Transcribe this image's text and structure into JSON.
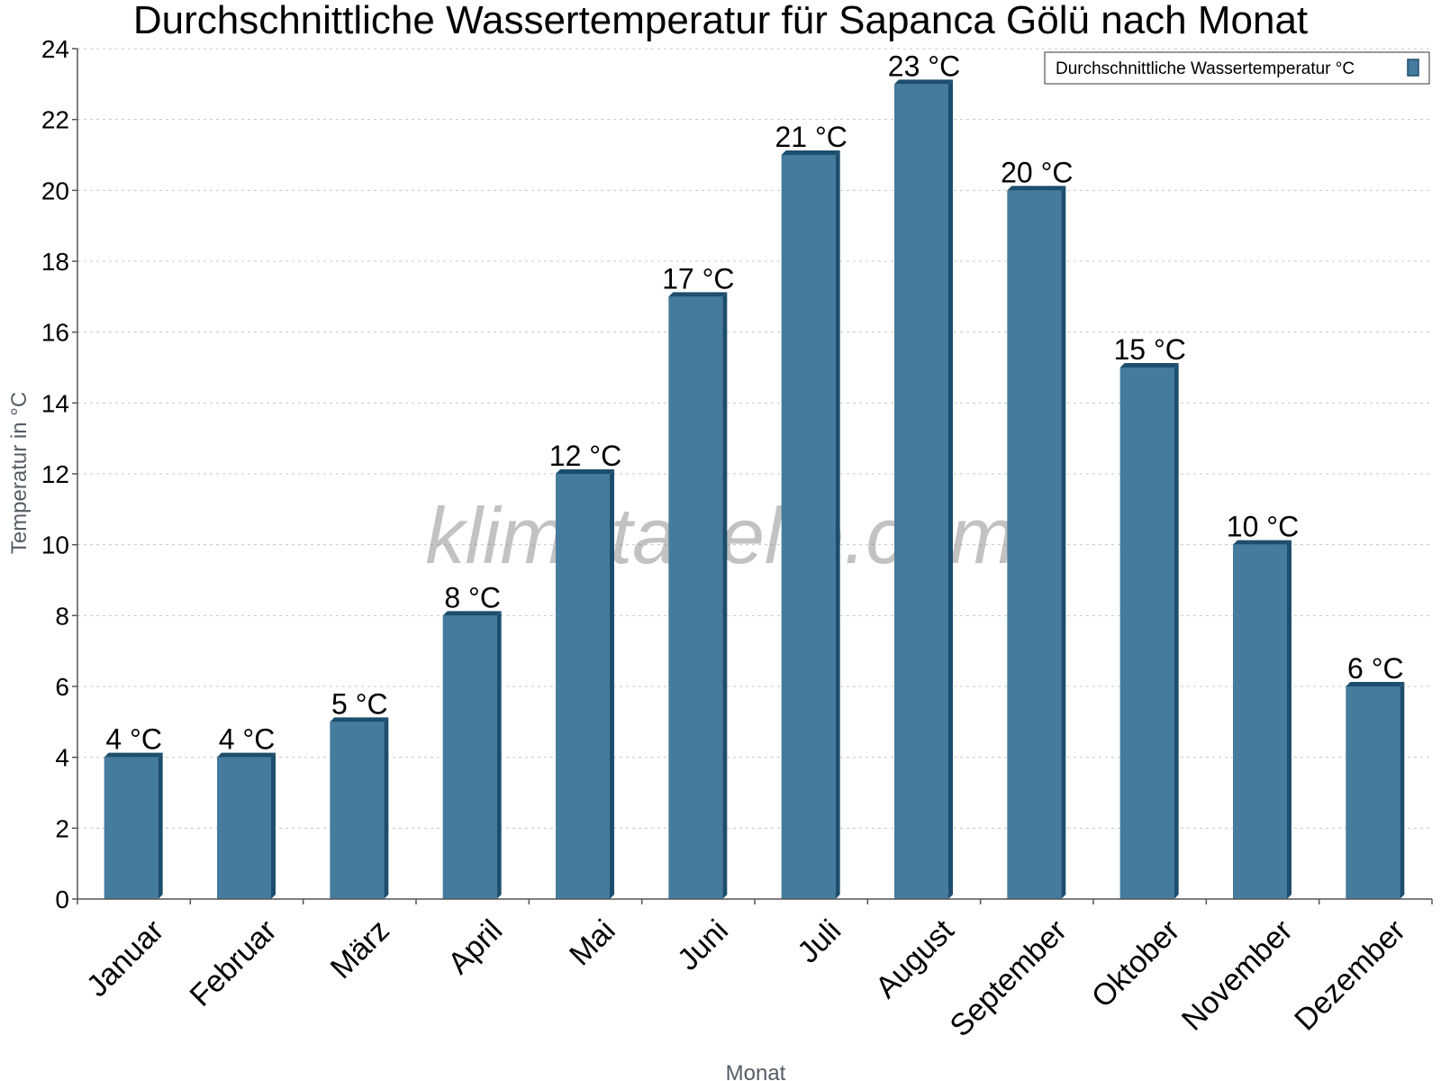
{
  "chart_data": {
    "type": "bar",
    "title": "Durchschnittliche Wassertemperatur für Sapanca Gölü nach Monat",
    "xlabel": "Monat",
    "ylabel": "Temperatur in °C",
    "categories": [
      "Januar",
      "Februar",
      "März",
      "April",
      "Mai",
      "Juni",
      "Juli",
      "August",
      "September",
      "Oktober",
      "November",
      "Dezember"
    ],
    "series": [
      {
        "name": "Durchschnittliche Wassertemperatur °C",
        "values": [
          4,
          4,
          5,
          8,
          12,
          17,
          21,
          23,
          20,
          15,
          10,
          6
        ],
        "labels": [
          "4 °C",
          "4 °C",
          "5 °C",
          "8 °C",
          "12 °C",
          "17 °C",
          "21 °C",
          "23 °C",
          "20 °C",
          "15 °C",
          "10 °C",
          "6 °C"
        ],
        "color": "#457b9d",
        "shade_color": "#1d4e6e"
      }
    ],
    "ylim": [
      0,
      24
    ],
    "yticks": [
      0,
      2,
      4,
      6,
      8,
      10,
      12,
      14,
      16,
      18,
      20,
      22,
      24
    ],
    "grid": true,
    "legend_position": "top-right",
    "watermark": "klimatabelle.com"
  }
}
